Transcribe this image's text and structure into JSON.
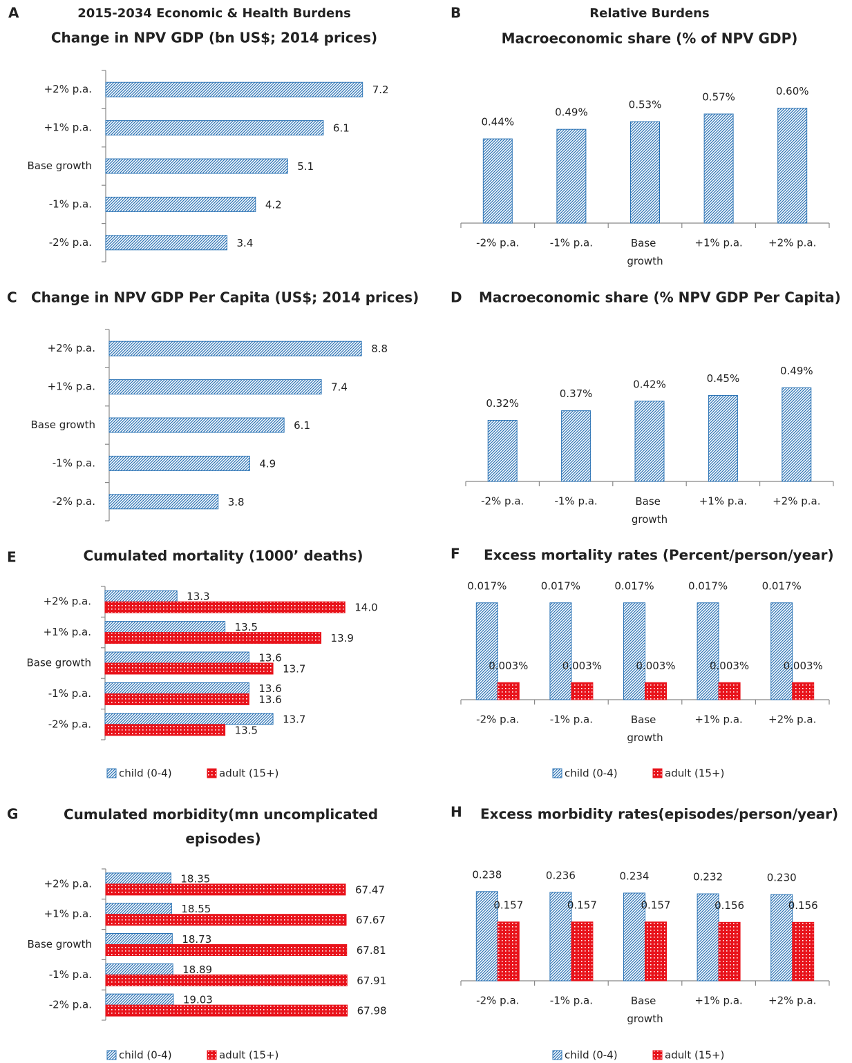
{
  "chart_data": [
    {
      "panel": "A",
      "header": "2015-2034 Economic & Health Burdens",
      "type": "hbar",
      "title": "Change in NPV GDP (bn US$; 2014 prices)",
      "categories": [
        "-2% p.a.",
        "-1% p.a.",
        "Base growth",
        "+1% p.a.",
        "+2% p.a."
      ],
      "values": [
        3.4,
        4.2,
        5.1,
        6.1,
        7.2
      ],
      "color": "#2e75b6",
      "fill_pattern": "hatch",
      "xlim": [
        0,
        8
      ]
    },
    {
      "panel": "B",
      "header": "Relative Burdens",
      "type": "bar",
      "title": "Macroeconomic share (% of NPV GDP)",
      "categories": [
        "-2% p.a.",
        "-1% p.a.",
        "Base growth",
        "+1% p.a.",
        "+2% p.a."
      ],
      "values": [
        0.44,
        0.49,
        0.53,
        0.57,
        0.6
      ],
      "value_labels": [
        "0.44%",
        "0.49%",
        "0.53%",
        "0.57%",
        "0.60%"
      ],
      "color": "#2e75b6",
      "fill_pattern": "hatch",
      "ylim": [
        0,
        0.7
      ]
    },
    {
      "panel": "C",
      "type": "hbar",
      "title": "Change in NPV GDP Per Capita (US$; 2014 prices)",
      "categories": [
        "-2% p.a.",
        "-1% p.a.",
        "Base growth",
        "+1% p.a.",
        "+2% p.a."
      ],
      "values": [
        3.8,
        4.9,
        6.1,
        7.4,
        8.8
      ],
      "color": "#2e75b6",
      "fill_pattern": "hatch",
      "xlim": [
        0,
        10
      ]
    },
    {
      "panel": "D",
      "type": "bar",
      "title": "Macroeconomic share (% NPV GDP Per Capita)",
      "categories": [
        "-2% p.a.",
        "-1% p.a.",
        "Base growth",
        "+1% p.a.",
        "+2% p.a."
      ],
      "values": [
        0.32,
        0.37,
        0.42,
        0.45,
        0.49
      ],
      "value_labels": [
        "0.32%",
        "0.37%",
        "0.42%",
        "0.45%",
        "0.49%"
      ],
      "color": "#2e75b6",
      "fill_pattern": "hatch",
      "ylim": [
        0,
        0.6
      ]
    },
    {
      "panel": "E",
      "type": "hbar",
      "title": "Cumulated mortality (1000’ deaths)",
      "categories": [
        "-2% p.a.",
        "-1% p.a.",
        "Base growth",
        "+1% p.a.",
        "+2% p.a."
      ],
      "series": [
        {
          "name": "child (0-4)",
          "color": "#2e75b6",
          "fill_pattern": "hatch",
          "values": [
            13.7,
            13.6,
            13.6,
            13.5,
            13.3
          ]
        },
        {
          "name": "adult (15+)",
          "color": "#e8131b",
          "fill_pattern": "dots",
          "values": [
            13.5,
            13.6,
            13.7,
            13.9,
            14.0
          ],
          "value_labels": [
            "13.5",
            "13.6",
            "13.7",
            "13.9",
            "14.0"
          ]
        }
      ],
      "xlim": [
        13,
        14.1
      ],
      "legend": "bottom"
    },
    {
      "panel": "F",
      "type": "bar",
      "title": "Excess mortality rates (Percent/person/year)",
      "categories": [
        "-2% p.a.",
        "-1% p.a.",
        "Base growth",
        "+1% p.a.",
        "+2% p.a."
      ],
      "series": [
        {
          "name": "child (0-4)",
          "color": "#2e75b6",
          "fill_pattern": "hatch",
          "values": [
            0.017,
            0.017,
            0.017,
            0.017,
            0.017
          ],
          "value_labels": [
            "0.017%",
            "0.017%",
            "0.017%",
            "0.017%",
            "0.017%"
          ]
        },
        {
          "name": "adult (15+)",
          "color": "#e8131b",
          "fill_pattern": "dots",
          "values": [
            0.003,
            0.003,
            0.003,
            0.003,
            0.003
          ],
          "value_labels": [
            "0.003%",
            "0.003%",
            "0.003%",
            "0.003%",
            "0.003%"
          ]
        }
      ],
      "ylim": [
        0,
        0.02
      ],
      "legend": "bottom"
    },
    {
      "panel": "G",
      "type": "hbar",
      "title": "Cumulated morbidity(mn uncomplicated episodes)",
      "categories": [
        "-2% p.a.",
        "-1% p.a.",
        "Base growth",
        "+1% p.a.",
        "+2% p.a."
      ],
      "series": [
        {
          "name": "child (0-4)",
          "color": "#2e75b6",
          "fill_pattern": "hatch",
          "values": [
            19.03,
            18.89,
            18.73,
            18.55,
            18.35
          ]
        },
        {
          "name": "adult (15+)",
          "color": "#e8131b",
          "fill_pattern": "dots",
          "values": [
            67.98,
            67.91,
            67.81,
            67.67,
            67.47
          ]
        }
      ],
      "xlim": [
        0,
        70
      ],
      "legend": "bottom"
    },
    {
      "panel": "H",
      "type": "bar",
      "title": "Excess morbidity rates(episodes/person/year)",
      "categories": [
        "-2% p.a.",
        "-1% p.a.",
        "Base growth",
        "+1% p.a.",
        "+2% p.a."
      ],
      "series": [
        {
          "name": "child (0-4)",
          "color": "#2e75b6",
          "fill_pattern": "hatch",
          "values": [
            0.238,
            0.236,
            0.234,
            0.232,
            0.23
          ],
          "value_labels": [
            "0.238",
            "0.236",
            "0.234",
            "0.232",
            "0.230"
          ]
        },
        {
          "name": "adult (15+)",
          "color": "#e8131b",
          "fill_pattern": "dots",
          "values": [
            0.157,
            0.157,
            0.157,
            0.156,
            0.156
          ]
        }
      ],
      "ylim": [
        0,
        0.28
      ],
      "legend": "bottom"
    }
  ]
}
